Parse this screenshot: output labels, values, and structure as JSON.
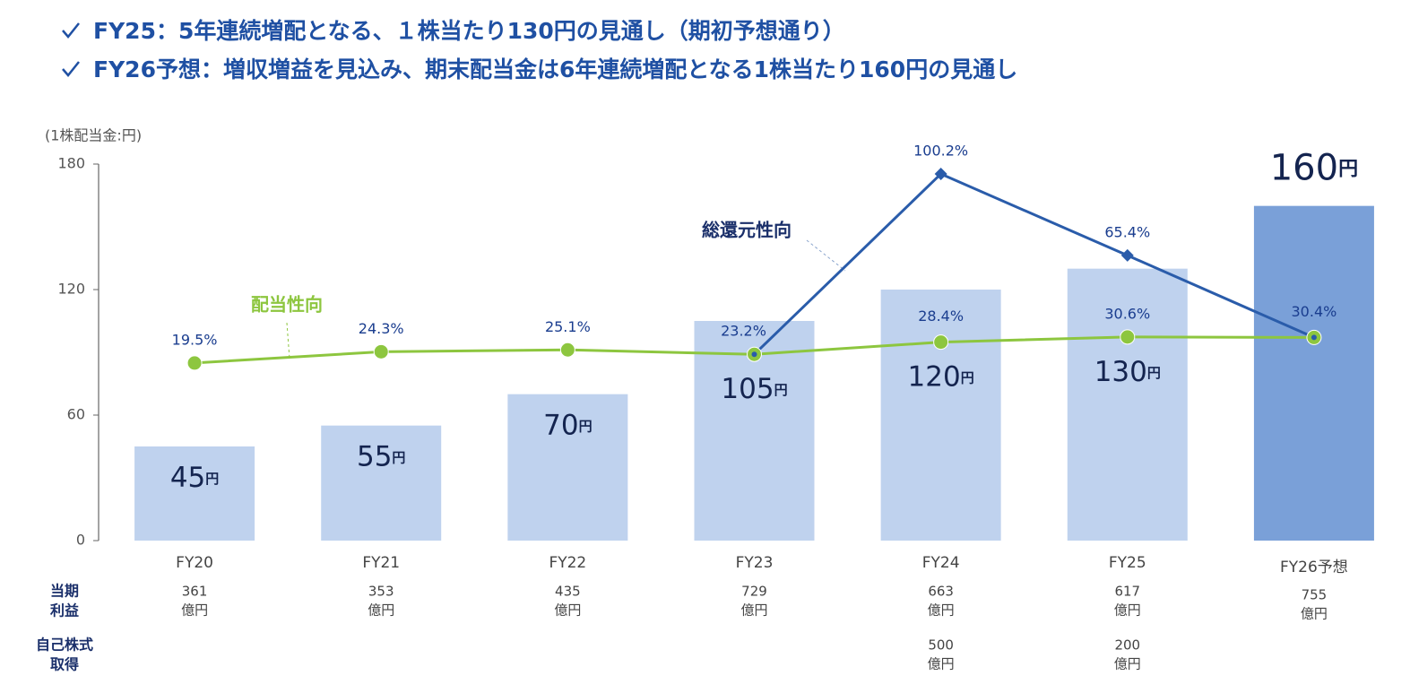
{
  "header": {
    "lines": [
      "FY25：5年連続増配となる、１株当たり130円の見通し（期初予想通り）",
      "FY26予想：増収増益を見込み、期末配当金は6年連続増配となる1株当たり160円の見通し"
    ]
  },
  "chart_data": {
    "type": "bar",
    "unit_label": "(1株配当金:円)",
    "categories": [
      "FY20",
      "FY21",
      "FY22",
      "FY23",
      "FY24",
      "FY25",
      "FY26予想"
    ],
    "values": [
      45,
      55,
      70,
      105,
      120,
      130,
      160
    ],
    "bar_unit": "円",
    "colors": [
      "#bfd2ee",
      "#bfd2ee",
      "#bfd2ee",
      "#bfd2ee",
      "#bfd2ee",
      "#bfd2ee",
      "#7aa0d8"
    ],
    "ylim": [
      0,
      180
    ],
    "yticks": [
      0,
      60,
      120,
      180
    ],
    "y2lim": [
      -56.3,
      104.4
    ],
    "lines": [
      {
        "name": "配当性向",
        "color": "#8dc63f",
        "marker": "circle",
        "axis": "y2",
        "values": [
          19.5,
          24.3,
          25.1,
          23.2,
          28.4,
          30.6,
          30.4
        ],
        "value_labels": [
          "19.5%",
          "24.3%",
          "25.1%",
          "23.2%",
          "28.4%",
          "30.6%",
          "30.4%"
        ]
      },
      {
        "name": "総還元性向",
        "color": "#2a5caa",
        "marker": "diamond",
        "axis": "y2",
        "values": [
          null,
          null,
          null,
          23.2,
          100.2,
          65.4,
          30.4
        ],
        "value_labels": [
          null,
          null,
          null,
          null,
          "100.2%",
          "65.4%",
          null
        ]
      }
    ],
    "table": {
      "rows": [
        {
          "label": [
            "当期",
            "利益"
          ],
          "unit": "億円",
          "values": [
            361,
            353,
            435,
            729,
            663,
            617,
            755
          ]
        },
        {
          "label": [
            "自己株式",
            "取得"
          ],
          "unit": "億円",
          "values": [
            null,
            null,
            null,
            null,
            500,
            200,
            null
          ]
        }
      ]
    }
  }
}
